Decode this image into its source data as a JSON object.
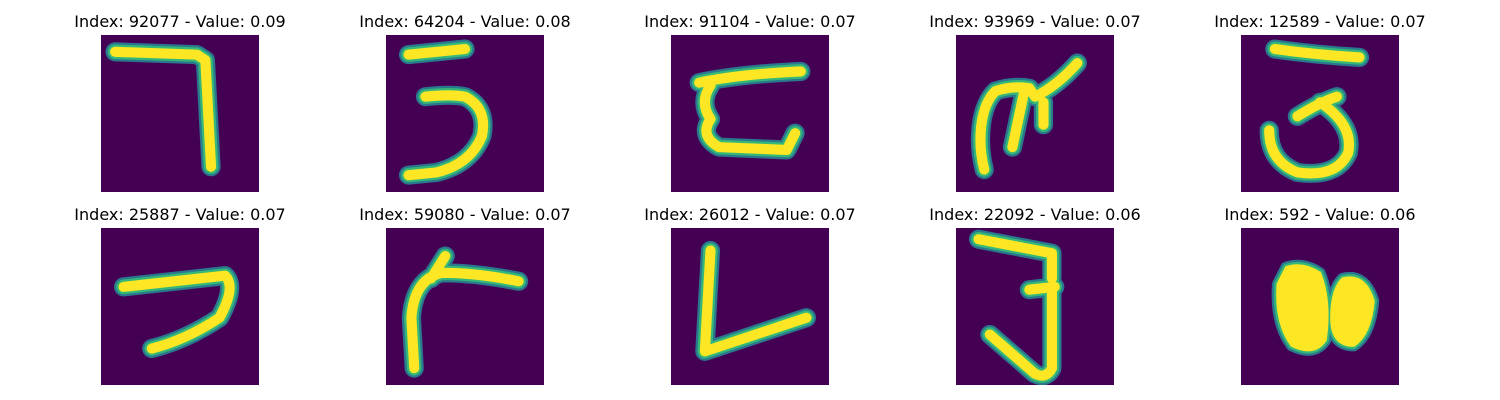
{
  "colors": {
    "background": "#440154",
    "stroke_core": "#fde725",
    "stroke_mid": "#35b779",
    "stroke_edge": "#2a788e"
  },
  "panels": [
    {
      "title": "Index: 92077 - Value: 0.09",
      "glyph": "seven"
    },
    {
      "title": "Index: 64204 - Value: 0.08",
      "glyph": "three"
    },
    {
      "title": "Index: 91104 - Value: 0.07",
      "glyph": "curly-z"
    },
    {
      "title": "Index: 93969 - Value: 0.07",
      "glyph": "scribble"
    },
    {
      "title": "Index: 12589 - Value: 0.07",
      "glyph": "three-open"
    },
    {
      "title": "Index: 25887 - Value: 0.07",
      "glyph": "hook"
    },
    {
      "title": "Index: 59080 - Value: 0.07",
      "glyph": "r-shape"
    },
    {
      "title": "Index: 26012 - Value: 0.07",
      "glyph": "l-shape"
    },
    {
      "title": "Index: 22092 - Value: 0.06",
      "glyph": "three-tall"
    },
    {
      "title": "Index: 592 - Value: 0.06",
      "glyph": "blob-eight"
    }
  ]
}
